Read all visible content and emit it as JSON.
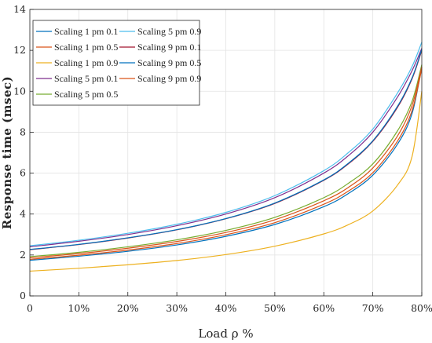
{
  "chart_data": {
    "type": "line",
    "xlabel": "Load ρ %",
    "ylabel": "Response time (msec)",
    "x_ticks": [
      "0",
      "10%",
      "20%",
      "30%",
      "40%",
      "50%",
      "60%",
      "70%",
      "80%"
    ],
    "y_ticks": [
      "0",
      "2",
      "4",
      "6",
      "8",
      "10",
      "12",
      "14"
    ],
    "xlim": [
      0,
      80
    ],
    "ylim": [
      0,
      14
    ],
    "grid": true,
    "legend_position": "top-left",
    "legend_columns": 2,
    "x": [
      0,
      10,
      20,
      30,
      40,
      50,
      60,
      65,
      70,
      75,
      78,
      80
    ],
    "series": [
      {
        "name": "Scaling 1 pm 0.1",
        "color": "#0072bd",
        "values": [
          1.74,
          1.94,
          2.18,
          2.49,
          2.91,
          3.49,
          4.36,
          5.0,
          5.9,
          7.4,
          8.9,
          11.2
        ]
      },
      {
        "name": "Scaling 1 pm 0.5",
        "color": "#d95319",
        "values": [
          1.79,
          1.99,
          2.24,
          2.56,
          2.99,
          3.58,
          4.48,
          5.12,
          6.02,
          7.55,
          9.05,
          11.1
        ]
      },
      {
        "name": "Scaling 1 pm 0.9",
        "color": "#edb120",
        "values": [
          1.21,
          1.35,
          1.52,
          1.73,
          2.02,
          2.43,
          3.03,
          3.48,
          4.15,
          5.4,
          6.8,
          10.0
        ]
      },
      {
        "name": "Scaling 5 pm 0.1",
        "color": "#7e2f8e",
        "values": [
          2.4,
          2.67,
          3.0,
          3.43,
          4.0,
          4.8,
          6.0,
          6.85,
          8.0,
          9.7,
          11.0,
          12.1
        ]
      },
      {
        "name": "Scaling 5 pm 0.5",
        "color": "#77ac30",
        "values": [
          1.92,
          2.13,
          2.4,
          2.74,
          3.2,
          3.84,
          4.8,
          5.5,
          6.45,
          8.05,
          9.5,
          11.3
        ]
      },
      {
        "name": "Scaling 5 pm 0.9",
        "color": "#4dbeee",
        "values": [
          2.45,
          2.72,
          3.06,
          3.5,
          4.08,
          4.9,
          6.12,
          7.0,
          8.15,
          9.9,
          11.2,
          12.4
        ]
      },
      {
        "name": "Scaling 9 pm 0.1",
        "color": "#a2142f",
        "values": [
          2.26,
          2.51,
          2.83,
          3.23,
          3.77,
          4.52,
          5.65,
          6.45,
          7.55,
          9.2,
          10.6,
          12.0
        ]
      },
      {
        "name": "Scaling 9 pm 0.5",
        "color": "#0072bd",
        "values": [
          2.27,
          2.52,
          2.84,
          3.24,
          3.78,
          4.54,
          5.67,
          6.48,
          7.58,
          9.25,
          10.65,
          12.05
        ]
      },
      {
        "name": "Scaling 9 pm 0.9",
        "color": "#d95319",
        "values": [
          1.86,
          2.07,
          2.33,
          2.66,
          3.1,
          3.72,
          4.65,
          5.3,
          6.25,
          7.8,
          9.3,
          11.2
        ]
      }
    ]
  }
}
